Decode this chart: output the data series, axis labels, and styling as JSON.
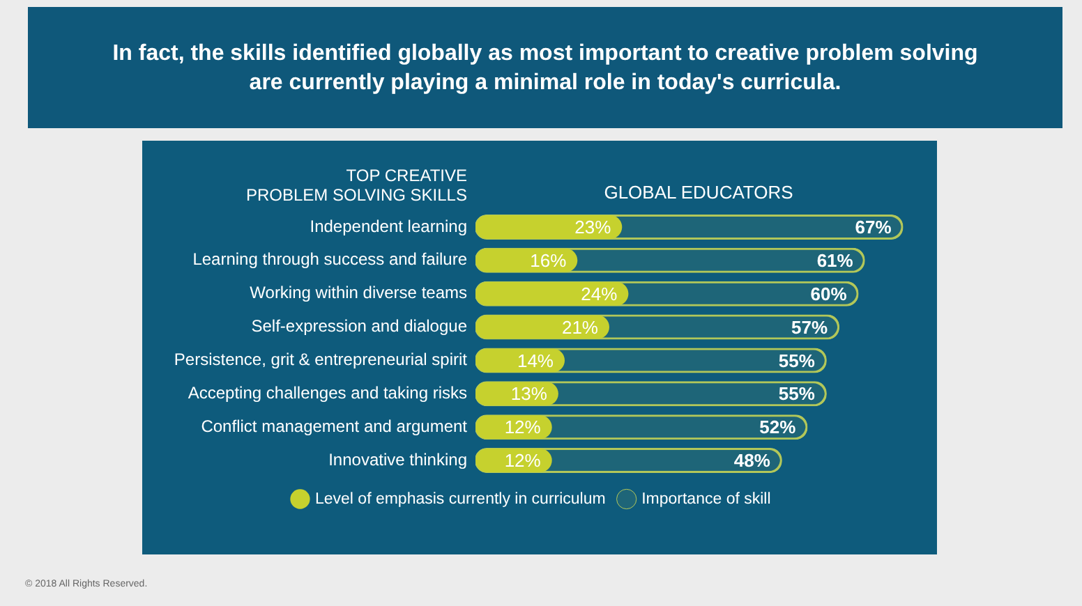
{
  "chart_data": {
    "type": "bar",
    "orientation": "horizontal",
    "title": "In fact, the skills identified globally as most important to creative problem solving are currently playing a minimal role in today's curricula.",
    "ylabel": "TOP CREATIVE\nPROBLEM SOLVING SKILLS",
    "xlabel": "GLOBAL EDUCATORS",
    "categories": [
      "Independent learning",
      "Learning through success and failure",
      "Working within diverse teams",
      "Self-expression and dialogue",
      "Persistence, grit & entrepreneurial spirit",
      "Accepting challenges and taking risks",
      "Conflict management and argument",
      "Innovative thinking"
    ],
    "series": [
      {
        "name": "Level of emphasis currently in curriculum",
        "color": "#c6d12e",
        "values": [
          23,
          16,
          24,
          21,
          14,
          13,
          12,
          12
        ],
        "value_labels": [
          "23%",
          "16%",
          "24%",
          "21%",
          "14%",
          "13%",
          "12%",
          "12%"
        ]
      },
      {
        "name": "Importance of skill",
        "color": "#b3c85a",
        "values": [
          67,
          61,
          60,
          57,
          55,
          55,
          52,
          48
        ],
        "value_labels": [
          "67%",
          "61%",
          "60%",
          "57%",
          "55%",
          "55%",
          "52%",
          "48%"
        ]
      }
    ],
    "tick_labels": "y",
    "legend": "bottom",
    "annotations": [
      "© 2018 All Rights Reserved."
    ]
  }
}
